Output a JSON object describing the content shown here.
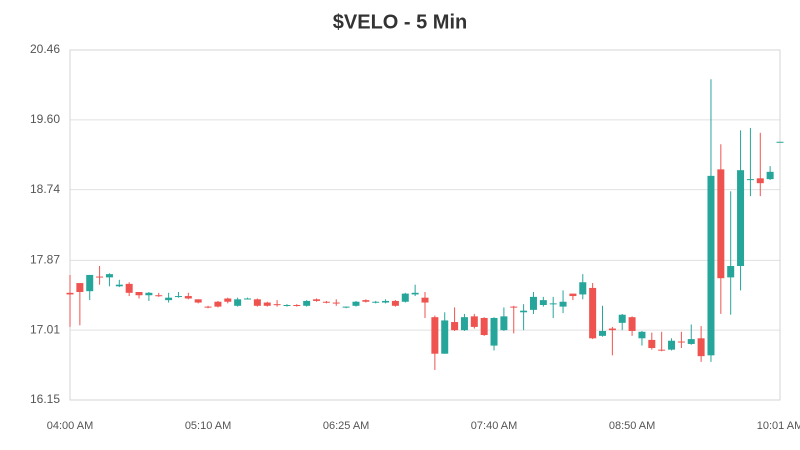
{
  "chart_data": {
    "type": "candlestick",
    "title": "$VELO - 5 Min",
    "categories": [
      "04:00 AM",
      null,
      null,
      null,
      null,
      null,
      null,
      null,
      null,
      null,
      null,
      null,
      null,
      null,
      "05:10 AM",
      null,
      null,
      null,
      null,
      null,
      null,
      null,
      null,
      null,
      null,
      null,
      null,
      null,
      "06:25 AM",
      null,
      null,
      null,
      null,
      null,
      null,
      null,
      null,
      null,
      null,
      null,
      null,
      null,
      null,
      "07:40 AM",
      null,
      null,
      null,
      null,
      null,
      null,
      null,
      null,
      null,
      null,
      null,
      null,
      null,
      "08:50 AM",
      null,
      null,
      null,
      null,
      null,
      null,
      null,
      null,
      null,
      null,
      null,
      null,
      null,
      null,
      "10:01 AM"
    ],
    "open": [
      17.47,
      17.59,
      17.49,
      17.67,
      17.66,
      17.55,
      17.58,
      17.48,
      17.44,
      17.44,
      17.38,
      17.42,
      17.43,
      17.39,
      17.3,
      17.36,
      17.4,
      17.31,
      17.39,
      17.39,
      17.35,
      17.33,
      17.31,
      17.32,
      17.31,
      17.39,
      17.36,
      17.35,
      17.29,
      17.31,
      17.38,
      17.35,
      17.35,
      17.37,
      17.36,
      17.45,
      17.41,
      17.17,
      16.72,
      17.11,
      17.01,
      17.18,
      17.16,
      16.82,
      17.01,
      17.3,
      17.23,
      17.26,
      17.32,
      17.33,
      17.3,
      17.46,
      17.45,
      17.53,
      16.94,
      17.03,
      17.1,
      17.17,
      16.91,
      16.89,
      16.77,
      16.77,
      16.87,
      16.84,
      16.91,
      16.7,
      18.99,
      17.66,
      17.8,
      18.86,
      18.88,
      18.87,
      19.33
    ],
    "high": [
      17.69,
      17.59,
      17.69,
      17.8,
      17.71,
      17.63,
      17.6,
      17.48,
      17.48,
      17.47,
      17.47,
      17.48,
      17.47,
      17.39,
      17.31,
      17.37,
      17.41,
      17.41,
      17.41,
      17.4,
      17.36,
      17.38,
      17.33,
      17.33,
      17.38,
      17.4,
      17.37,
      17.39,
      17.3,
      17.37,
      17.39,
      17.37,
      17.39,
      17.38,
      17.47,
      17.57,
      17.48,
      17.19,
      17.23,
      17.29,
      17.21,
      17.21,
      17.17,
      17.17,
      17.29,
      17.31,
      17.33,
      17.48,
      17.42,
      17.42,
      17.5,
      17.46,
      17.7,
      17.59,
      17.31,
      17.05,
      17.21,
      17.18,
      17.0,
      16.98,
      16.99,
      16.91,
      16.99,
      17.08,
      17.06,
      20.1,
      19.3,
      18.72,
      19.47,
      19.5,
      19.44,
      19.03,
      19.33
    ],
    "low": [
      17.05,
      17.07,
      17.38,
      17.57,
      17.55,
      17.54,
      17.43,
      17.4,
      17.37,
      17.42,
      17.35,
      17.41,
      17.39,
      17.34,
      17.28,
      17.29,
      17.34,
      17.3,
      17.39,
      17.3,
      17.3,
      17.3,
      17.3,
      17.3,
      17.3,
      17.36,
      17.34,
      17.31,
      17.28,
      17.3,
      17.35,
      17.34,
      17.34,
      17.3,
      17.35,
      17.43,
      17.16,
      16.52,
      16.72,
      17.0,
      17.0,
      17.03,
      16.94,
      16.76,
      17.0,
      16.97,
      17.01,
      17.21,
      17.3,
      17.16,
      17.22,
      17.38,
      17.39,
      16.9,
      16.93,
      16.7,
      17.01,
      16.94,
      16.82,
      16.77,
      16.75,
      16.76,
      16.79,
      16.83,
      16.62,
      16.62,
      17.21,
      17.2,
      17.5,
      18.66,
      18.66,
      18.86,
      19.33
    ],
    "close": [
      17.45,
      17.48,
      17.69,
      17.66,
      17.7,
      17.57,
      17.47,
      17.44,
      17.47,
      17.43,
      17.41,
      17.43,
      17.4,
      17.35,
      17.29,
      17.3,
      17.36,
      17.39,
      17.4,
      17.31,
      17.31,
      17.32,
      17.32,
      17.31,
      17.37,
      17.37,
      17.35,
      17.34,
      17.3,
      17.36,
      17.36,
      17.36,
      17.37,
      17.31,
      17.46,
      17.47,
      17.35,
      16.72,
      17.13,
      17.01,
      17.17,
      17.05,
      16.95,
      17.16,
      17.18,
      17.29,
      17.25,
      17.42,
      17.38,
      17.34,
      17.36,
      17.43,
      17.6,
      16.91,
      17.0,
      17.01,
      17.2,
      17.0,
      16.99,
      16.79,
      16.76,
      16.88,
      16.86,
      16.9,
      16.69,
      18.91,
      17.65,
      17.8,
      18.98,
      18.87,
      18.82,
      18.96,
      19.33
    ],
    "up_color": "#26a69a",
    "down_color": "#ef5350",
    "ylim": [
      16.15,
      20.46
    ],
    "yticks": [
      16.15,
      17.01,
      17.87,
      18.74,
      {
        "value": 19.6,
        "label": "19.60"
      },
      20.46
    ],
    "grid": true
  }
}
